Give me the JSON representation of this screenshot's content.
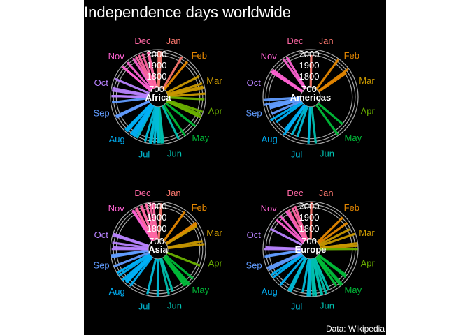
{
  "title": "Independence days worldwide",
  "caption": "Data: Wikipedia",
  "colors": {
    "background": "#000000",
    "text": "#ffffff",
    "grid": "#a6a6a6",
    "months": [
      "#F8766D",
      "#E58700",
      "#C99800",
      "#A3A500",
      "#6BB100",
      "#00BA38",
      "#00BF7D",
      "#00C0AF",
      "#00BCD8",
      "#00B0F6",
      "#619CFF",
      "#B983FF",
      "#E76BF3",
      "#FD61D1",
      "#FF67A4"
    ]
  },
  "chart_data": [
    {
      "type": "radial-bar",
      "region": "Africa",
      "months": [
        "Jan",
        "Feb",
        "Mar",
        "Apr",
        "May",
        "Jun",
        "Jul",
        "Aug",
        "Sep",
        "Oct",
        "Nov",
        "Dec"
      ],
      "radial_ticks": [
        700,
        1800,
        1900,
        2000
      ],
      "ylim": [
        700,
        2000
      ],
      "x_unit": "day of year",
      "y_unit": "year",
      "points": [
        {
          "day": 1,
          "year": 1956
        },
        {
          "day": 4,
          "year": 1948
        },
        {
          "day": 31,
          "year": 1968
        },
        {
          "day": 40,
          "year": 1945
        },
        {
          "day": 64,
          "year": 1957
        },
        {
          "day": 74,
          "year": 1956
        },
        {
          "day": 78,
          "year": 1956
        },
        {
          "day": 80,
          "year": 1968
        },
        {
          "day": 87,
          "year": 1990
        },
        {
          "day": 94,
          "year": 1960
        },
        {
          "day": 110,
          "year": 1980
        },
        {
          "day": 114,
          "year": 1961
        },
        {
          "day": 117,
          "year": 1960
        },
        {
          "day": 117,
          "year": 1994
        },
        {
          "day": 130,
          "year": 1993
        },
        {
          "day": 147,
          "year": 1991
        },
        {
          "day": 156,
          "year": 1976
        },
        {
          "day": 176,
          "year": 1975
        },
        {
          "day": 177,
          "year": 1960
        },
        {
          "day": 178,
          "year": 1977
        },
        {
          "day": 181,
          "year": 1960
        },
        {
          "day": 181,
          "year": 1962
        },
        {
          "day": 182,
          "year": 1960
        },
        {
          "day": 182,
          "year": 1962
        },
        {
          "day": 187,
          "year": 1964
        },
        {
          "day": 187,
          "year": 1975
        },
        {
          "day": 191,
          "year": 2011
        },
        {
          "day": 193,
          "year": 1975
        },
        {
          "day": 199,
          "year": 1960
        },
        {
          "day": 210,
          "year": 1960
        },
        {
          "day": 213,
          "year": 1960
        },
        {
          "day": 215,
          "year": 1960
        },
        {
          "day": 217,
          "year": 1960
        },
        {
          "day": 219,
          "year": 1960
        },
        {
          "day": 225,
          "year": 1960
        },
        {
          "day": 227,
          "year": 1960
        },
        {
          "day": 228,
          "year": 1960
        },
        {
          "day": 247,
          "year": 1968
        },
        {
          "day": 249,
          "year": 1968
        },
        {
          "day": 267,
          "year": 1960
        },
        {
          "day": 275,
          "year": 1966
        },
        {
          "day": 275,
          "year": 1960
        },
        {
          "day": 275,
          "year": 1958
        },
        {
          "day": 282,
          "year": 1962
        },
        {
          "day": 285,
          "year": 1968
        },
        {
          "day": 297,
          "year": 1964
        },
        {
          "day": 315,
          "year": 1956
        },
        {
          "day": 315,
          "year": 1975
        },
        {
          "day": 323,
          "year": 1960
        },
        {
          "day": 332,
          "year": 1958
        },
        {
          "day": 336,
          "year": 1963
        },
        {
          "day": 340,
          "year": 1961
        },
        {
          "day": 345,
          "year": 1963
        },
        {
          "day": 352,
          "year": 1951
        },
        {
          "day": 353,
          "year": 1960
        }
      ]
    },
    {
      "type": "radial-bar",
      "region": "Americas",
      "months": [
        "Jan",
        "Feb",
        "Mar",
        "Apr",
        "May",
        "Jun",
        "Jul",
        "Aug",
        "Sep",
        "Oct",
        "Nov",
        "Dec"
      ],
      "radial_ticks": [
        700,
        1800,
        1900,
        2000
      ],
      "ylim": [
        700,
        2000
      ],
      "x_unit": "day of year",
      "y_unit": "year",
      "points": [
        {
          "day": 1,
          "year": 1804
        },
        {
          "day": 37,
          "year": 1974
        },
        {
          "day": 54,
          "year": 1970
        },
        {
          "day": 57,
          "year": 1844
        },
        {
          "day": 132,
          "year": 1811
        },
        {
          "day": 146,
          "year": 1966
        },
        {
          "day": 176,
          "year": 1975
        },
        {
          "day": 185,
          "year": 1776
        },
        {
          "day": 185,
          "year": 1973
        },
        {
          "day": 201,
          "year": 1810
        },
        {
          "day": 209,
          "year": 1821
        },
        {
          "day": 218,
          "year": 1962
        },
        {
          "day": 218,
          "year": 1825
        },
        {
          "day": 221,
          "year": 1809
        },
        {
          "day": 237,
          "year": 1825
        },
        {
          "day": 243,
          "year": 1962
        },
        {
          "day": 250,
          "year": 1822
        },
        {
          "day": 258,
          "year": 1821
        },
        {
          "day": 259,
          "year": 1810
        },
        {
          "day": 261,
          "year": 1810
        },
        {
          "day": 264,
          "year": 1981
        },
        {
          "day": 270,
          "year": 1983
        },
        {
          "day": 307,
          "year": 1978
        },
        {
          "day": 307,
          "year": 1981
        },
        {
          "day": 307,
          "year": 1903
        },
        {
          "day": 307,
          "year": 1820
        },
        {
          "day": 310,
          "year": 1978
        },
        {
          "day": 329,
          "year": 1975
        },
        {
          "day": 334,
          "year": 1966
        }
      ]
    },
    {
      "type": "radial-bar",
      "region": "Asia",
      "months": [
        "Jan",
        "Feb",
        "Mar",
        "Apr",
        "May",
        "Jun",
        "Jul",
        "Aug",
        "Sep",
        "Oct",
        "Nov",
        "Dec"
      ],
      "radial_ticks": [
        700,
        1800,
        1900,
        2000
      ],
      "ylim": [
        700,
        2000
      ],
      "x_unit": "day of year",
      "y_unit": "year",
      "points": [
        {
          "day": 4,
          "year": 1948
        },
        {
          "day": 36,
          "year": 1948
        },
        {
          "day": 56,
          "year": 1961
        },
        {
          "day": 58,
          "year": 1962
        },
        {
          "day": 60,
          "year": 1919
        },
        {
          "day": 81,
          "year": 1917
        },
        {
          "day": 85,
          "year": 1971
        },
        {
          "day": 113,
          "year": 1920
        },
        {
          "day": 132,
          "year": 1948
        },
        {
          "day": 142,
          "year": 1990
        },
        {
          "day": 140,
          "year": 2002
        },
        {
          "day": 145,
          "year": 1946
        },
        {
          "day": 146,
          "year": 1918
        },
        {
          "day": 146,
          "year": 1918
        },
        {
          "day": 163,
          "year": 1898
        },
        {
          "day": 169,
          "year": 1961
        },
        {
          "day": 183,
          "year": 1991
        },
        {
          "day": 196,
          "year": 1958
        },
        {
          "day": 220,
          "year": 1965
        },
        {
          "day": 226,
          "year": 1945
        },
        {
          "day": 227,
          "year": 1947
        },
        {
          "day": 227,
          "year": 1945
        },
        {
          "day": 227,
          "year": 1947
        },
        {
          "day": 230,
          "year": 1919
        },
        {
          "day": 232,
          "year": 1991
        },
        {
          "day": 239,
          "year": 1991
        },
        {
          "day": 243,
          "year": 1957
        },
        {
          "day": 243,
          "year": 1991
        },
        {
          "day": 252,
          "year": 1991
        },
        {
          "day": 264,
          "year": 1991
        },
        {
          "day": 265,
          "year": 1932
        },
        {
          "day": 266,
          "year": 1991
        },
        {
          "day": 274,
          "year": 1960
        },
        {
          "day": 276,
          "year": 1932
        },
        {
          "day": 282,
          "year": 1953
        },
        {
          "day": 291,
          "year": 1991
        },
        {
          "day": 293,
          "year": 1991
        },
        {
          "day": 331,
          "year": 1943
        },
        {
          "day": 332,
          "year": 1967
        },
        {
          "day": 337,
          "year": 1971
        },
        {
          "day": 336,
          "year": 1971
        },
        {
          "day": 343,
          "year": 1971
        },
        {
          "day": 344,
          "year": 1971
        },
        {
          "day": 350,
          "year": 1971
        },
        {
          "day": 350,
          "year": 1991
        },
        {
          "day": 359,
          "year": 1971
        },
        {
          "day": 355,
          "year": 1984
        }
      ]
    },
    {
      "type": "radial-bar",
      "region": "Europe",
      "months": [
        "Jan",
        "Feb",
        "Mar",
        "Apr",
        "May",
        "Jun",
        "Jul",
        "Aug",
        "Sep",
        "Oct",
        "Nov",
        "Dec"
      ],
      "radial_ticks": [
        700,
        1800,
        1900,
        2000
      ],
      "ylim": [
        700,
        2000
      ],
      "x_unit": "day of year",
      "y_unit": "year",
      "points": [
        {
          "day": 1,
          "year": 1993
        },
        {
          "day": 46,
          "year": 1918
        },
        {
          "day": 55,
          "year": 1918
        },
        {
          "day": 64,
          "year": 1878
        },
        {
          "day": 72,
          "year": 1990
        },
        {
          "day": 84,
          "year": 1821
        },
        {
          "day": 84,
          "year": 1993
        },
        {
          "day": 87,
          "year": 1993
        },
        {
          "day": 91,
          "year": 1993
        },
        {
          "day": 128,
          "year": 1877
        },
        {
          "day": 130,
          "year": 1918
        },
        {
          "day": 140,
          "year": 1993
        },
        {
          "day": 142,
          "year": 2006
        },
        {
          "day": 147,
          "year": 1918
        },
        {
          "day": 147,
          "year": 1905
        },
        {
          "day": 158,
          "year": 1523
        },
        {
          "day": 158,
          "year": 1905
        },
        {
          "day": 163,
          "year": 1991
        },
        {
          "day": 168,
          "year": 1991
        },
        {
          "day": 169,
          "year": 1990
        },
        {
          "day": 176,
          "year": 1991
        },
        {
          "day": 176,
          "year": 1991
        },
        {
          "day": 179,
          "year": 1991
        },
        {
          "day": 184,
          "year": 1991
        },
        {
          "day": 186,
          "year": 1991
        },
        {
          "day": 193,
          "year": 1878
        },
        {
          "day": 208,
          "year": 1991
        },
        {
          "day": 211,
          "year": 1990
        },
        {
          "day": 223,
          "year": 1991
        },
        {
          "day": 236,
          "year": 1991
        },
        {
          "day": 240,
          "year": 1991
        },
        {
          "day": 247,
          "year": 1964
        },
        {
          "day": 250,
          "year": 1991
        },
        {
          "day": 264,
          "year": 1964
        },
        {
          "day": 265,
          "year": 1908
        },
        {
          "day": 274,
          "year": 1960
        },
        {
          "day": 276,
          "year": 1918
        },
        {
          "day": 301,
          "year": 1918
        },
        {
          "day": 315,
          "year": 1918
        },
        {
          "day": 322,
          "year": 1918
        },
        {
          "day": 332,
          "year": 1912
        },
        {
          "day": 335,
          "year": 1918
        },
        {
          "day": 341,
          "year": 1917
        },
        {
          "day": 345,
          "year": 1944
        }
      ]
    }
  ]
}
